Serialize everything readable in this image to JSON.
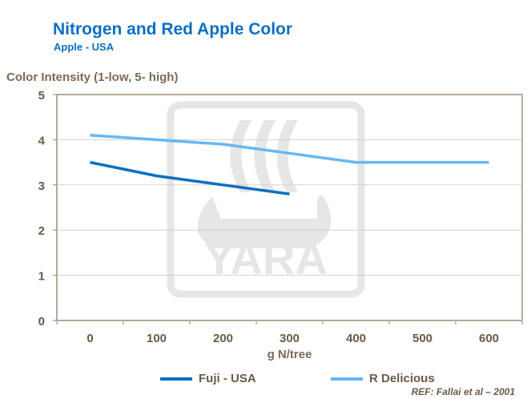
{
  "chart_data": {
    "type": "line",
    "title": "Nitrogen and Red Apple Color",
    "subtitle": "Apple - USA",
    "ylabel": "Color Intensity (1-low, 5- high)",
    "xlabel": "g N/tree",
    "categories": [
      "0",
      "100",
      "200",
      "300",
      "400",
      "500",
      "600"
    ],
    "yticks": [
      "0",
      "1",
      "2",
      "3",
      "4",
      "5"
    ],
    "ylim": [
      0,
      5
    ],
    "grid": true,
    "legend_position": "bottom",
    "series": [
      {
        "name": "Fuji - USA",
        "color": "#0a6fc2",
        "values": [
          3.5,
          3.2,
          3.0,
          2.8,
          null,
          null,
          null
        ]
      },
      {
        "name": "R Delicious",
        "color": "#66b8f5",
        "values": [
          4.1,
          4.0,
          3.9,
          3.7,
          3.5,
          3.5,
          3.5
        ]
      }
    ],
    "reference": "REF: Fallai et al – 2001",
    "watermark": "YARA"
  }
}
